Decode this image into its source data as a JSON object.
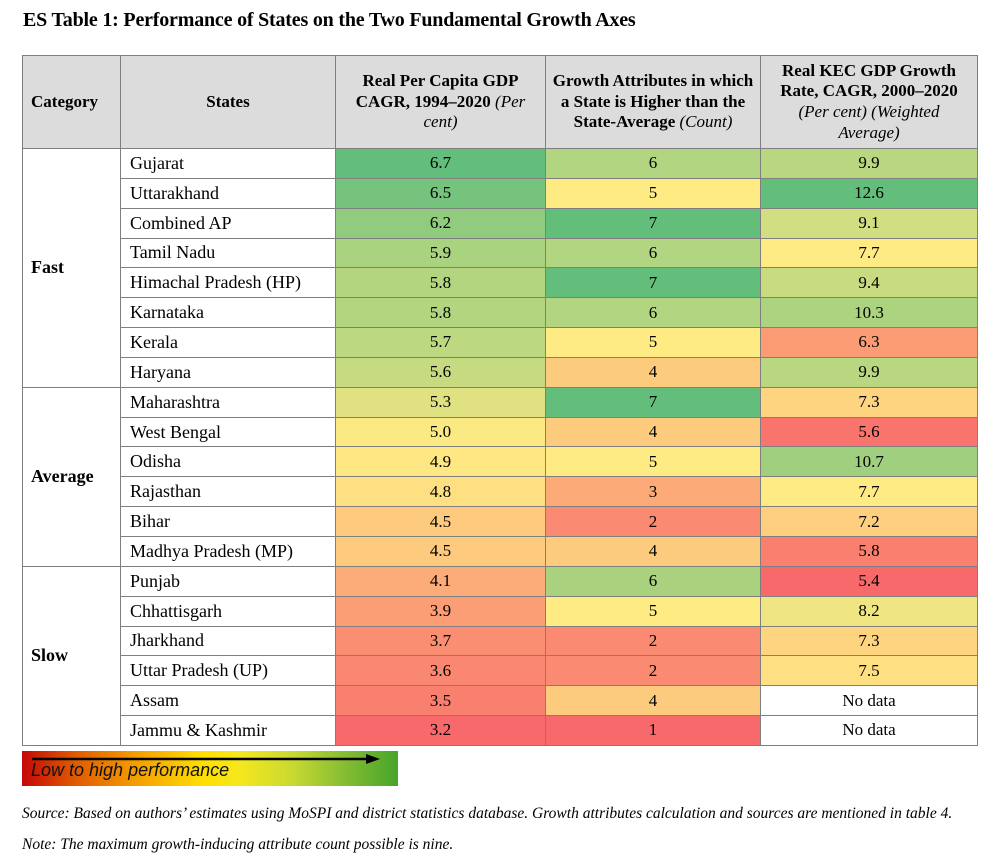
{
  "title": "ES Table 1: Performance of States on the Two Fundamental Growth Axes",
  "table": {
    "headers": [
      {
        "name": "col-header-category",
        "label": "Category",
        "sub": ""
      },
      {
        "name": "col-header-states",
        "label": "States",
        "sub": ""
      },
      {
        "name": "col-header-gdp-cagr",
        "label": "Real Per Capita GDP CAGR, 1994–2020",
        "sub": "(Per cent)"
      },
      {
        "name": "col-header-growth-attributes",
        "label": "Growth Attributes in which a State is Higher than the State-Average",
        "sub": "(Count)"
      },
      {
        "name": "col-header-kec-gdp",
        "label": "Real KEC GDP Growth Rate, CAGR, 2000–2020",
        "sub": "(Per cent) (Weighted Average)"
      }
    ],
    "groups": [
      {
        "category": "Fast",
        "rows": [
          {
            "state": "Gujarat",
            "gdp": "6.7",
            "gdp_color": "#63BE7B",
            "count": "6",
            "count_color": "#B1D580",
            "kec": "9.9",
            "kec_color": "#B9D780"
          },
          {
            "state": "Uttarakhand",
            "gdp": "6.5",
            "gdp_color": "#75C37C",
            "count": "5",
            "count_color": "#FFEB84",
            "kec": "12.6",
            "kec_color": "#63BE7B"
          },
          {
            "state": "Combined AP",
            "gdp": "6.2",
            "gdp_color": "#90CB7E",
            "count": "7",
            "count_color": "#63BE7B",
            "kec": "9.1",
            "kec_color": "#D2DE81"
          },
          {
            "state": "Tamil Nadu",
            "gdp": "5.9",
            "gdp_color": "#AAD37F",
            "count": "6",
            "count_color": "#B1D580",
            "kec": "7.7",
            "kec_color": "#FFEB84"
          },
          {
            "state": "Himachal Pradesh (HP)",
            "gdp": "5.8",
            "gdp_color": "#B3D580",
            "count": "7",
            "count_color": "#63BE7B",
            "kec": "9.4",
            "kec_color": "#C9DB81"
          },
          {
            "state": "Karnataka",
            "gdp": "5.8",
            "gdp_color": "#B3D580",
            "count": "6",
            "count_color": "#B1D580",
            "kec": "10.3",
            "kec_color": "#ACD37F"
          },
          {
            "state": "Kerala",
            "gdp": "5.7",
            "gdp_color": "#BCD880",
            "count": "5",
            "count_color": "#FFEB84",
            "kec": "6.3",
            "kec_color": "#FB9C75"
          },
          {
            "state": "Haryana",
            "gdp": "5.6",
            "gdp_color": "#C5DA81",
            "count": "4",
            "count_color": "#FDCB7E",
            "kec": "9.9",
            "kec_color": "#B9D780"
          }
        ]
      },
      {
        "category": "Average",
        "rows": [
          {
            "state": "Maharashtra",
            "gdp": "5.3",
            "gdp_color": "#E0E282",
            "count": "7",
            "count_color": "#63BE7B",
            "kec": "7.3",
            "kec_color": "#FED480"
          },
          {
            "state": "West Bengal",
            "gdp": "5.0",
            "gdp_color": "#FBEA84",
            "count": "4",
            "count_color": "#FDCB7E",
            "kec": "5.6",
            "kec_color": "#F9746D"
          },
          {
            "state": "Odisha",
            "gdp": "4.9",
            "gdp_color": "#FFE783",
            "count": "5",
            "count_color": "#FFEB84",
            "kec": "10.7",
            "kec_color": "#A0CF7F"
          },
          {
            "state": "Rajasthan",
            "gdp": "4.8",
            "gdp_color": "#FEE082",
            "count": "3",
            "count_color": "#FCAA78",
            "kec": "7.7",
            "kec_color": "#FFEB84"
          },
          {
            "state": "Bihar",
            "gdp": "4.5",
            "gdp_color": "#FDCA7E",
            "count": "2",
            "count_color": "#FA8A71",
            "kec": "7.2",
            "kec_color": "#FDCF7F"
          },
          {
            "state": "Madhya Pradesh (MP)",
            "gdp": "4.5",
            "gdp_color": "#FDCA7E",
            "count": "4",
            "count_color": "#FDCB7E",
            "kec": "5.8",
            "kec_color": "#F9806F"
          }
        ]
      },
      {
        "category": "Slow",
        "rows": [
          {
            "state": "Punjab",
            "gdp": "4.1",
            "gdp_color": "#FCAC78",
            "count": "6",
            "count_color": "#A9D17E",
            "kec": "5.4",
            "kec_color": "#F8696B"
          },
          {
            "state": "Chhattisgarh",
            "gdp": "3.9",
            "gdp_color": "#FB9D75",
            "count": "5",
            "count_color": "#FFEB84",
            "kec": "8.2",
            "kec_color": "#EFE683"
          },
          {
            "state": "Jharkhand",
            "gdp": "3.7",
            "gdp_color": "#FA8E72",
            "count": "2",
            "count_color": "#FA8A71",
            "kec": "7.3",
            "kec_color": "#FED480"
          },
          {
            "state": "Uttar Pradesh (UP)",
            "gdp": "3.6",
            "gdp_color": "#FA8771",
            "count": "2",
            "count_color": "#FA8A71",
            "kec": "7.5",
            "kec_color": "#FEE082"
          },
          {
            "state": "Assam",
            "gdp": "3.5",
            "gdp_color": "#F97F6F",
            "count": "4",
            "count_color": "#FDCB7E",
            "kec": "No data",
            "kec_color": "#FFFFFF"
          },
          {
            "state": "Jammu & Kashmir",
            "gdp": "3.2",
            "gdp_color": "#F8696B",
            "count": "1",
            "count_color": "#F8696B",
            "kec": "No data",
            "kec_color": "#FFFFFF"
          }
        ]
      }
    ]
  },
  "legend": {
    "label": "Low to high performance",
    "gradient_colors": [
      "#C40808",
      "#F39C00",
      "#FFDF00",
      "#C8D932",
      "#47A42A"
    ]
  },
  "source": "Source: Based on authors’ estimates using MoSPI and district statistics database. Growth attributes calculation and sources are mentioned in table 4.",
  "note": "Note: The maximum growth-inducing attribute count possible is nine."
}
